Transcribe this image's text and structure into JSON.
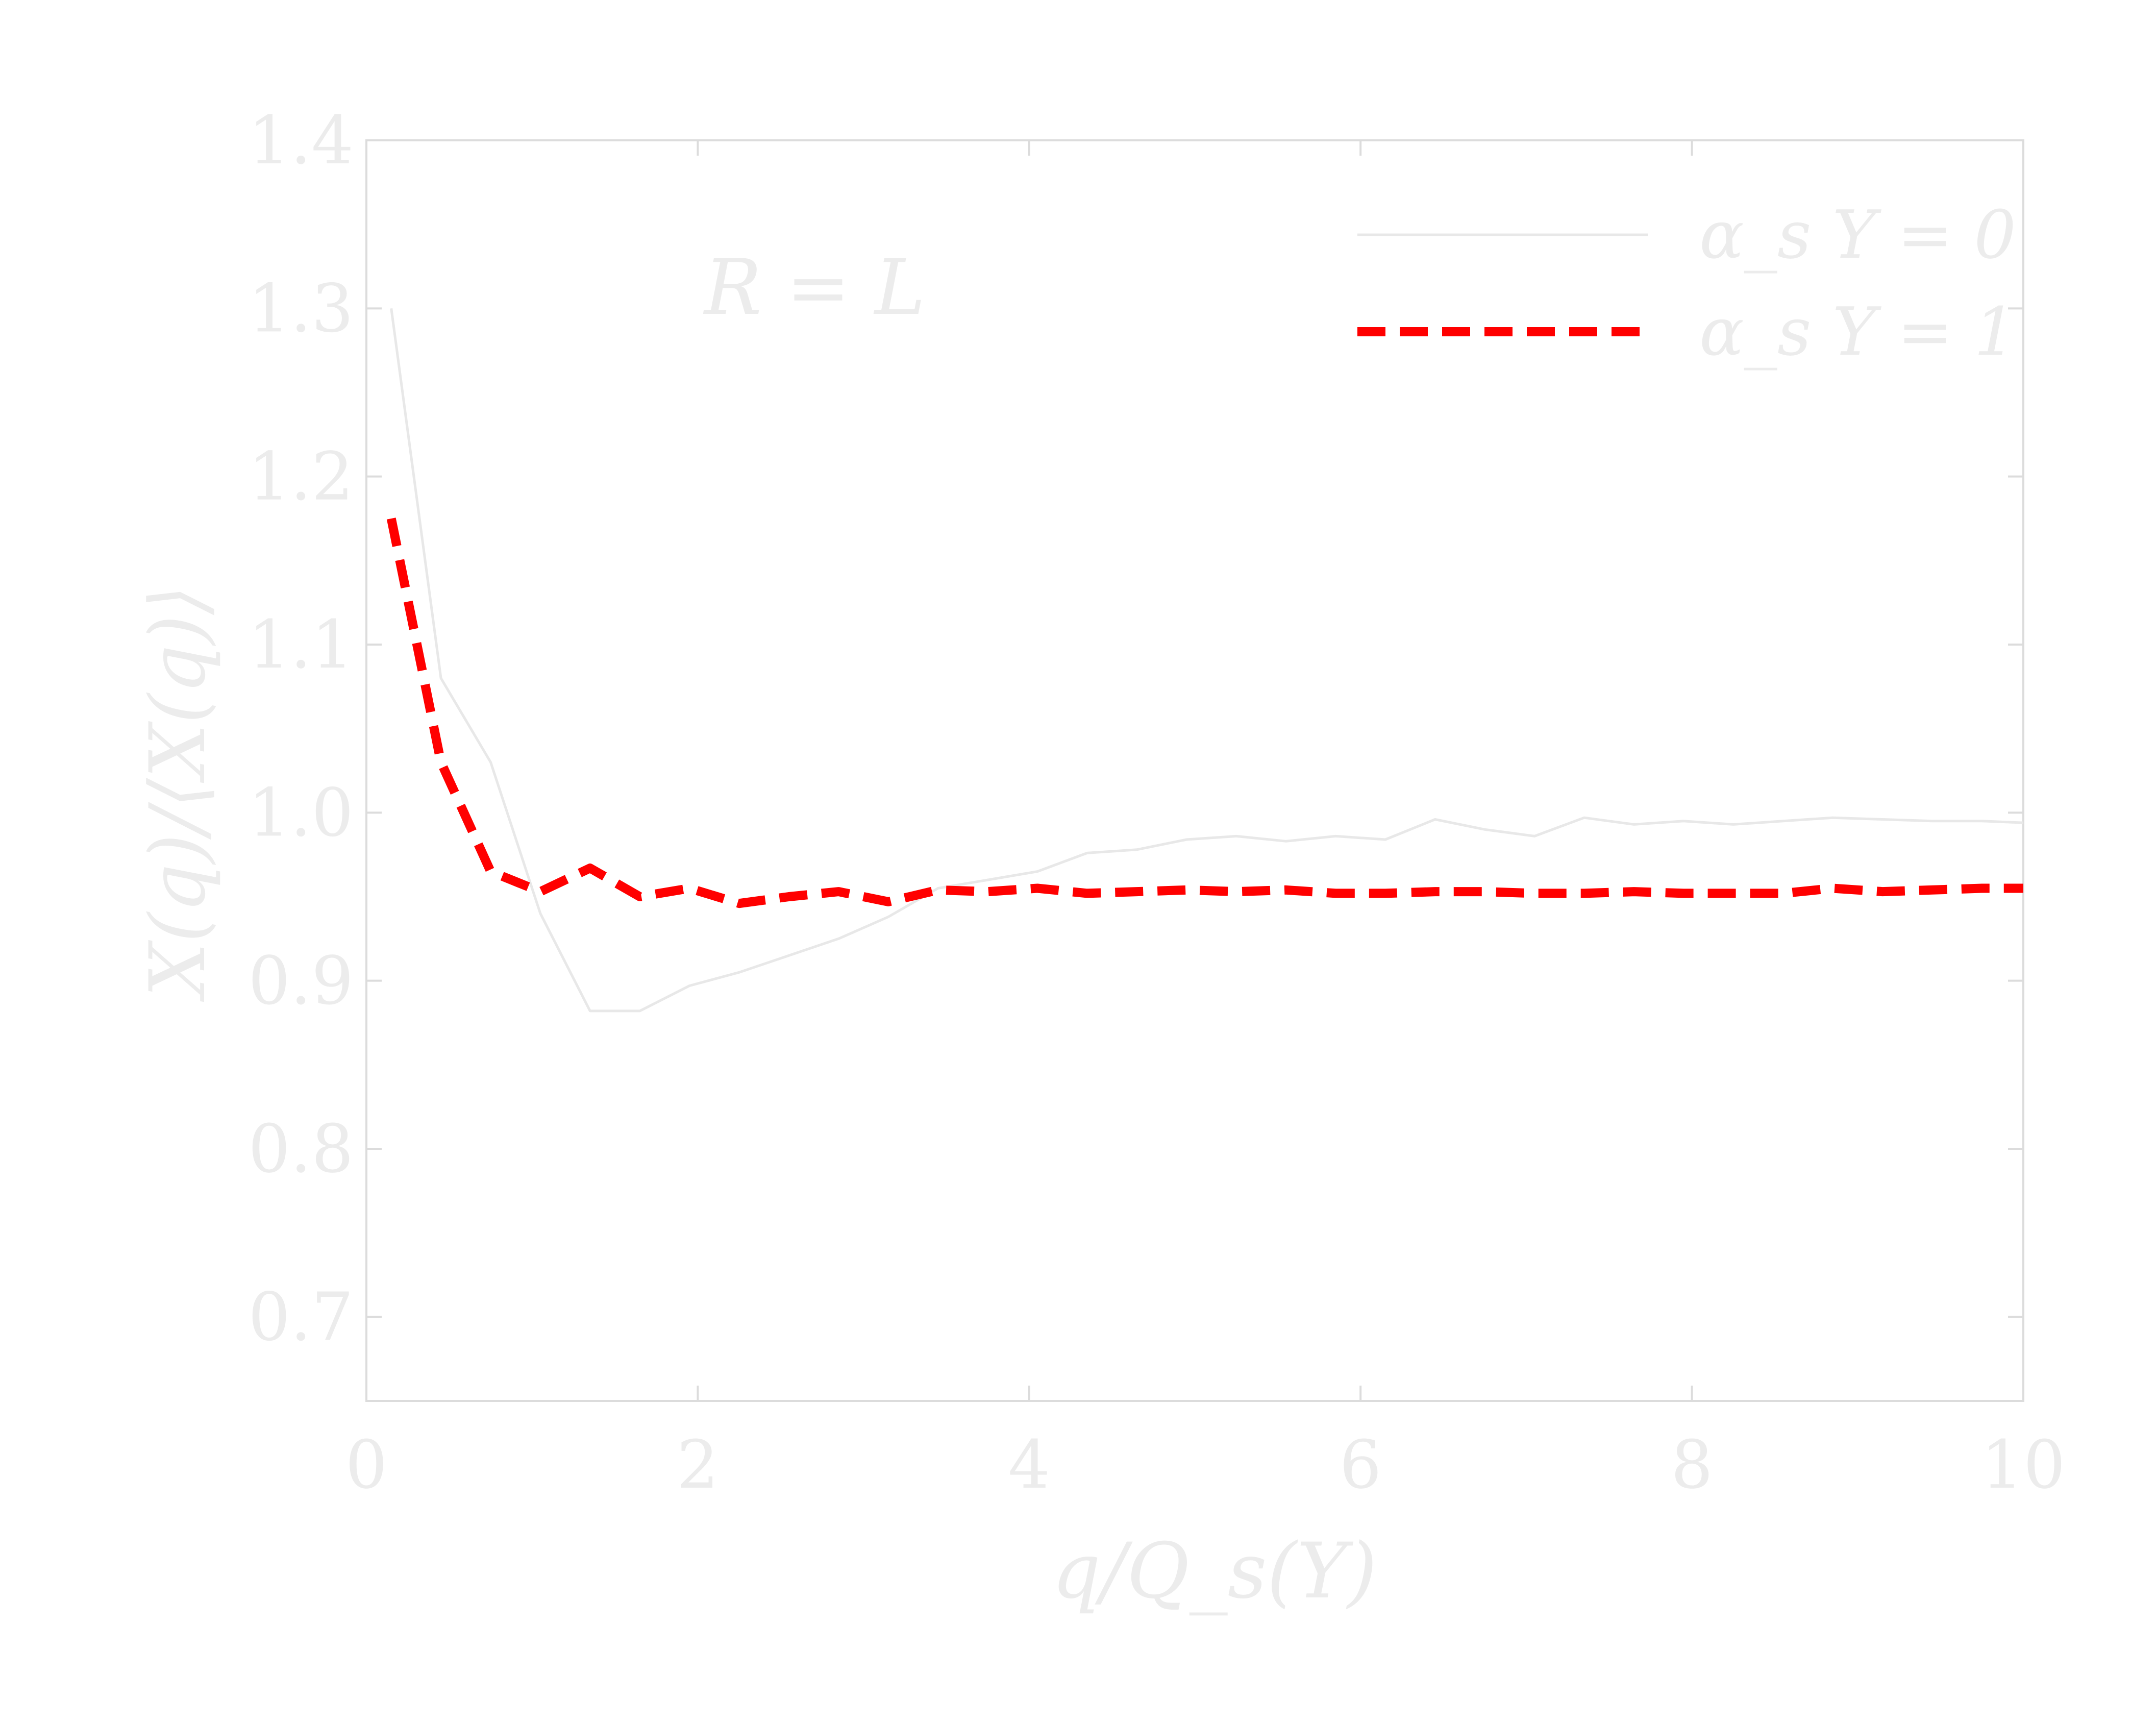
{
  "chart_data": {
    "type": "line",
    "xlabel": "q/Q_s(Y)",
    "ylabel": "X(q)/⟨X(q)⟩",
    "xlim": [
      0,
      10
    ],
    "ylim": [
      0.65,
      1.4
    ],
    "xticks": [
      0,
      2,
      4,
      6,
      8,
      10
    ],
    "yticks": [
      0.7,
      0.8,
      0.9,
      1.0,
      1.1,
      1.2,
      1.3,
      1.4
    ],
    "xtick_labels": [
      "0",
      "2",
      "4",
      "6",
      "8",
      "10"
    ],
    "ytick_labels": [
      "0.7",
      "0.8",
      "0.9",
      "1.0",
      "1.1",
      "1.2",
      "1.3",
      "1.4"
    ],
    "annotation": "R = L",
    "legend_position": "top-right",
    "grid": false,
    "series": [
      {
        "name": "α_s Y = 0",
        "color": "#e8e8e8",
        "style": "solid",
        "x": [
          0.15,
          0.45,
          0.75,
          1.05,
          1.35,
          1.65,
          1.95,
          2.25,
          2.55,
          2.85,
          3.15,
          3.45,
          3.75,
          4.05,
          4.35,
          4.65,
          4.95,
          5.25,
          5.55,
          5.85,
          6.15,
          6.45,
          6.75,
          7.05,
          7.35,
          7.65,
          7.95,
          8.25,
          8.55,
          8.85,
          9.15,
          9.45,
          9.75,
          10.0
        ],
        "y": [
          1.3,
          1.08,
          1.03,
          0.94,
          0.882,
          0.882,
          0.897,
          0.905,
          0.915,
          0.925,
          0.938,
          0.955,
          0.96,
          0.965,
          0.976,
          0.978,
          0.984,
          0.986,
          0.983,
          0.986,
          0.984,
          0.996,
          0.99,
          0.986,
          0.997,
          0.993,
          0.995,
          0.993,
          0.995,
          0.997,
          0.996,
          0.995,
          0.995,
          0.994
        ]
      },
      {
        "name": "α_s Y = 1",
        "color": "#ff0000",
        "style": "dashed",
        "x": [
          0.15,
          0.45,
          0.75,
          1.05,
          1.35,
          1.65,
          1.95,
          2.25,
          2.55,
          2.85,
          3.15,
          3.45,
          3.75,
          4.05,
          4.35,
          4.65,
          4.95,
          5.25,
          5.55,
          5.85,
          6.15,
          6.45,
          6.75,
          7.05,
          7.35,
          7.65,
          7.95,
          8.25,
          8.55,
          8.85,
          9.15,
          9.45,
          9.75,
          10.0
        ],
        "y": [
          1.175,
          1.03,
          0.965,
          0.953,
          0.967,
          0.95,
          0.955,
          0.946,
          0.95,
          0.953,
          0.947,
          0.954,
          0.953,
          0.955,
          0.952,
          0.953,
          0.954,
          0.953,
          0.954,
          0.952,
          0.952,
          0.953,
          0.953,
          0.952,
          0.952,
          0.953,
          0.952,
          0.952,
          0.952,
          0.955,
          0.953,
          0.954,
          0.955,
          0.955
        ]
      }
    ]
  }
}
